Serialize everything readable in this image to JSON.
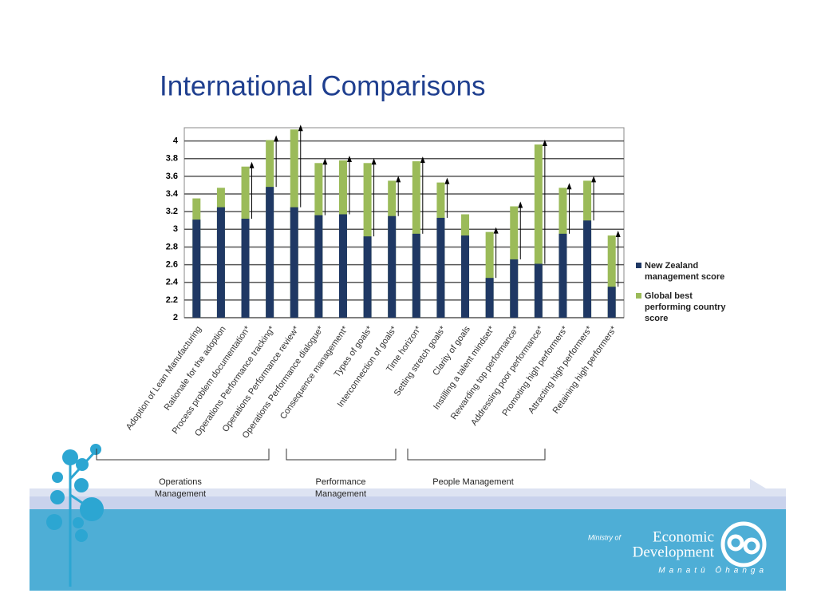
{
  "title": "International Comparisons",
  "chart_data": {
    "type": "bar",
    "categories": [
      "Adoption of Lean Manufacturing",
      "Rationale for the adoption",
      "Process problem documentation*",
      "Operations Performance tracking*",
      "Operations Performance review*",
      "Operations Performance dialogue*",
      "Consequence management*",
      "Types of goals*",
      "Interconnection of goals*",
      "Time horizon*",
      "Setting stretch goals*",
      "Clarity of goals",
      "Instilling a talent mindset*",
      "Rewarding top performance*",
      "Addressing poor performance*",
      "Promoting high performers*",
      "Attracting high performers*",
      "Retaining high performers*"
    ],
    "series": [
      {
        "name": "New Zealand management score",
        "color": "#1f3864",
        "values": [
          3.11,
          3.25,
          3.12,
          3.48,
          3.25,
          3.16,
          3.17,
          2.92,
          3.15,
          2.95,
          3.13,
          2.93,
          2.45,
          2.66,
          2.61,
          2.95,
          3.1,
          2.35
        ]
      },
      {
        "name": "Global best performing country score",
        "color": "#9bbb59",
        "values": [
          3.35,
          3.47,
          3.71,
          4.01,
          4.13,
          3.75,
          3.78,
          3.75,
          3.55,
          3.77,
          3.53,
          3.17,
          2.97,
          3.26,
          3.96,
          3.47,
          3.55,
          2.93
        ]
      }
    ],
    "arrows": [
      false,
      false,
      true,
      true,
      true,
      true,
      true,
      true,
      true,
      true,
      true,
      false,
      true,
      true,
      true,
      true,
      true,
      true
    ],
    "ylim": [
      2,
      4.15
    ],
    "yticks": [
      2,
      2.2,
      2.4,
      2.6,
      2.8,
      3,
      3.2,
      3.4,
      3.6,
      3.8,
      4
    ],
    "grid": true,
    "legend": "right",
    "groups": [
      "Operations Management",
      "Performance Management",
      "People Management"
    ]
  },
  "branding": {
    "ministry": "Ministry of",
    "name1": "Economic",
    "name2": "Development",
    "maori": "Manatū Ōhanga"
  }
}
